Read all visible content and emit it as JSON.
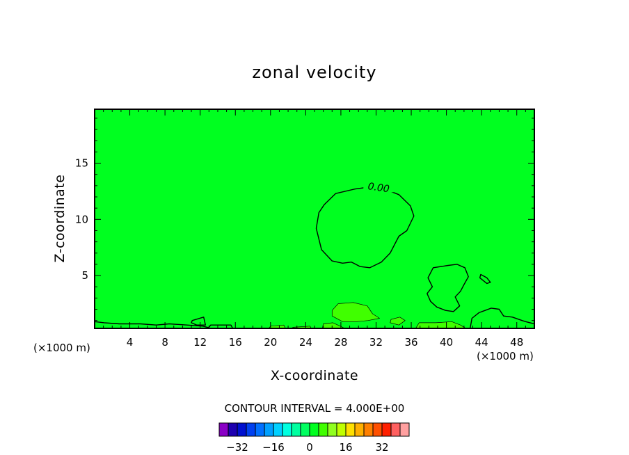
{
  "chart_data": {
    "type": "heatmap",
    "title": "zonal velocity",
    "xlabel": "X-coordinate",
    "ylabel": "Z-coordinate",
    "x_unit_label": "(×1000 m)",
    "x_unit_label_right": "(×1000 m)",
    "xlim": [
      0,
      50
    ],
    "ylim": [
      0.3,
      19.8
    ],
    "x_ticks": [
      4,
      8,
      12,
      16,
      20,
      24,
      28,
      32,
      36,
      40,
      44,
      48
    ],
    "y_ticks": [
      5,
      10,
      15
    ],
    "contour_interval_text": "CONTOUR INTERVAL = 4.000E+00",
    "contour_label": "0.00",
    "field_background_value": 1,
    "regions": [
      {
        "name": "main-negative-region",
        "value": -1,
        "points": [
          [
            26.1,
            11.3
          ],
          [
            27.4,
            12.3
          ],
          [
            29.6,
            12.7
          ],
          [
            31.4,
            12.9
          ],
          [
            33.0,
            12.7
          ],
          [
            34.6,
            12.2
          ],
          [
            35.9,
            11.2
          ],
          [
            36.3,
            10.3
          ],
          [
            35.5,
            9.0
          ],
          [
            34.6,
            8.5
          ],
          [
            33.6,
            7.0
          ],
          [
            32.6,
            6.2
          ],
          [
            31.3,
            5.7
          ],
          [
            30.2,
            5.8
          ],
          [
            29.2,
            6.2
          ],
          [
            28.2,
            6.1
          ],
          [
            27.0,
            6.3
          ],
          [
            25.8,
            7.3
          ],
          [
            25.2,
            9.2
          ],
          [
            25.5,
            10.6
          ]
        ]
      },
      {
        "name": "lower-negative-region",
        "value": -1,
        "points": [
          [
            38.5,
            5.7
          ],
          [
            40.2,
            5.9
          ],
          [
            41.2,
            6.0
          ],
          [
            42.1,
            5.7
          ],
          [
            42.5,
            4.9
          ],
          [
            42.0,
            4.2
          ],
          [
            41.6,
            3.6
          ],
          [
            41.0,
            3.1
          ],
          [
            41.5,
            2.3
          ],
          [
            40.8,
            1.8
          ],
          [
            39.9,
            1.9
          ],
          [
            38.9,
            2.2
          ],
          [
            38.2,
            2.7
          ],
          [
            37.8,
            3.4
          ],
          [
            38.4,
            4.0
          ],
          [
            37.9,
            4.8
          ]
        ]
      },
      {
        "name": "small-negative-blob",
        "value": -1,
        "points": [
          [
            43.9,
            5.1
          ],
          [
            44.6,
            4.8
          ],
          [
            45.0,
            4.4
          ],
          [
            44.6,
            4.3
          ],
          [
            43.8,
            4.8
          ]
        ]
      },
      {
        "name": "right-base-negative-region",
        "value": -1,
        "points": [
          [
            42.7,
            0.3
          ],
          [
            42.9,
            1.2
          ],
          [
            43.7,
            1.7
          ],
          [
            44.4,
            1.9
          ],
          [
            45.1,
            2.1
          ],
          [
            46.0,
            2.0
          ],
          [
            46.5,
            1.4
          ],
          [
            47.5,
            1.3
          ],
          [
            48.6,
            1.0
          ],
          [
            49.0,
            0.9
          ],
          [
            50.0,
            0.7
          ],
          [
            50.0,
            0.3
          ]
        ]
      },
      {
        "name": "left-base-negative-region",
        "value": -1,
        "points": [
          [
            0.0,
            0.3
          ],
          [
            0.0,
            0.9
          ],
          [
            1.1,
            0.8
          ],
          [
            2.8,
            0.7
          ],
          [
            5.2,
            0.7
          ],
          [
            7.0,
            0.6
          ],
          [
            8.5,
            0.7
          ],
          [
            10.5,
            0.6
          ],
          [
            12.3,
            0.5
          ],
          [
            13.3,
            0.3
          ]
        ]
      },
      {
        "name": "small-negative-loop",
        "value": -1,
        "points": [
          [
            11.1,
            1.0
          ],
          [
            12.4,
            1.3
          ],
          [
            12.6,
            0.6
          ],
          [
            11.6,
            0.6
          ],
          [
            11.0,
            0.8
          ]
        ]
      },
      {
        "name": "mid-base-negative-region",
        "value": -1,
        "points": [
          [
            12.9,
            0.3
          ],
          [
            13.2,
            0.6
          ],
          [
            15.5,
            0.6
          ],
          [
            15.7,
            0.3
          ]
        ]
      },
      {
        "name": "positive-patch-1",
        "value": 5,
        "points": [
          [
            27.0,
            1.9
          ],
          [
            27.7,
            2.5
          ],
          [
            29.4,
            2.6
          ],
          [
            31.0,
            2.3
          ],
          [
            31.6,
            1.6
          ],
          [
            32.4,
            1.2
          ],
          [
            31.1,
            1.0
          ],
          [
            29.8,
            0.9
          ],
          [
            28.2,
            0.9
          ],
          [
            27.0,
            1.4
          ]
        ]
      },
      {
        "name": "positive-patch-2",
        "value": 5,
        "points": [
          [
            33.7,
            1.1
          ],
          [
            34.7,
            1.3
          ],
          [
            35.3,
            1.0
          ],
          [
            34.6,
            0.6
          ],
          [
            33.6,
            0.8
          ]
        ]
      },
      {
        "name": "positive-patch-3",
        "value": 5,
        "points": [
          [
            25.9,
            0.3
          ],
          [
            26.0,
            0.7
          ],
          [
            27.1,
            0.8
          ],
          [
            28.2,
            0.4
          ],
          [
            28.4,
            0.3
          ]
        ]
      },
      {
        "name": "positive-patch-4",
        "value": 5,
        "points": [
          [
            36.5,
            0.3
          ],
          [
            36.9,
            0.8
          ],
          [
            38.8,
            0.8
          ],
          [
            40.6,
            0.9
          ],
          [
            41.6,
            0.6
          ],
          [
            42.2,
            0.3
          ]
        ]
      },
      {
        "name": "positive-patch-5",
        "value": 5,
        "points": [
          [
            19.8,
            0.3
          ],
          [
            20.0,
            0.5
          ],
          [
            21.5,
            0.6
          ],
          [
            21.7,
            0.3
          ]
        ]
      },
      {
        "name": "positive-patch-6",
        "value": 5,
        "points": [
          [
            22.3,
            0.3
          ],
          [
            22.6,
            0.4
          ],
          [
            24.5,
            0.5
          ],
          [
            24.6,
            0.3
          ]
        ]
      }
    ],
    "colorbar": {
      "tick_labels": [
        "-32",
        "-16",
        "0",
        "16",
        "32"
      ],
      "tick_values": [
        -32,
        -16,
        0,
        16,
        32
      ],
      "levels": [
        -38,
        -34,
        -30,
        -26,
        -22,
        -18,
        -14,
        -10,
        -6,
        -2,
        2,
        6,
        10,
        14,
        18,
        22,
        26,
        30,
        34,
        38
      ],
      "colors": [
        "#8a00c6",
        "#1e00b0",
        "#0010d0",
        "#0040f0",
        "#0070ff",
        "#00a0ff",
        "#00d0ff",
        "#00ffe0",
        "#00ffa0",
        "#00ff60",
        "#00ff20",
        "#40ff00",
        "#90ff20",
        "#c0ff00",
        "#ffe000",
        "#ffb000",
        "#ff8000",
        "#ff5000",
        "#ff2000",
        "#ff6060",
        "#ffa0a0"
      ]
    },
    "contour_line_color": "#000000"
  }
}
